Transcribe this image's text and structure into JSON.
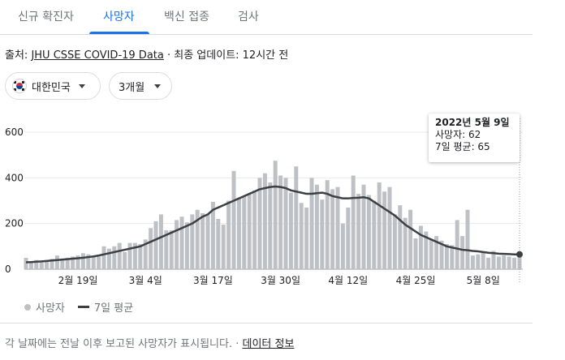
{
  "tabs": [
    {
      "label": "신규 확진자",
      "active": false
    },
    {
      "label": "사망자",
      "active": true
    },
    {
      "label": "백신 접종",
      "active": false
    },
    {
      "label": "검사",
      "active": false
    }
  ],
  "source": {
    "prefix": "출처: ",
    "link": "JHU CSSE COVID-19 Data",
    "update": " · 최종 업데이트: 12시간 전"
  },
  "filters": {
    "region": "대한민국",
    "region_flag": "south-korea-flag-icon",
    "period": "3개월"
  },
  "tooltip": {
    "date": "2022년 5월 9일",
    "deaths_line": "사망자: 62",
    "avg_line": "7일 평균: 65"
  },
  "legend": {
    "bars": "사망자",
    "line": "7일 평균"
  },
  "footnote": {
    "text": "각 날짜에는 전날 이후 보고된 사망자가 표시됩니다.",
    "sep": " · ",
    "link": "데이터 정보"
  },
  "colors": {
    "accent": "#1a73e8",
    "bar": "#bdc1c6",
    "line": "#3c4043"
  },
  "chart_data": {
    "type": "bar",
    "title": "",
    "xlabel": "",
    "ylabel": "",
    "ylim": [
      0,
      600
    ],
    "yticks": [
      0,
      200,
      400,
      600
    ],
    "xticks": [
      "2월 19일",
      "3월 4일",
      "3월 17일",
      "3월 30일",
      "4월 12일",
      "4월 25일",
      "5월 8일"
    ],
    "x_start": "2022-02-09",
    "x_end": "2022-05-09",
    "series": [
      {
        "name": "사망자",
        "kind": "bar",
        "values": [
          50,
          35,
          40,
          30,
          40,
          45,
          60,
          45,
          50,
          55,
          60,
          70,
          65,
          55,
          55,
          100,
          90,
          100,
          115,
          75,
          115,
          115,
          110,
          130,
          180,
          210,
          240,
          170,
          170,
          215,
          230,
          205,
          240,
          260,
          245,
          240,
          295,
          220,
          195,
          300,
          430,
          310,
          320,
          330,
          345,
          400,
          420,
          380,
          475,
          410,
          400,
          335,
          450,
          290,
          270,
          400,
          370,
          305,
          390,
          350,
          360,
          200,
          270,
          410,
          330,
          370,
          325,
          300,
          380,
          340,
          360,
          240,
          280,
          225,
          260,
          135,
          190,
          165,
          130,
          145,
          125,
          110,
          105,
          215,
          145,
          260,
          60,
          65,
          75,
          50,
          80,
          55,
          60,
          55,
          50,
          62
        ]
      },
      {
        "name": "7일 평균",
        "kind": "line",
        "values": [
          30,
          31,
          33,
          34,
          36,
          38,
          40,
          42,
          44,
          46,
          48,
          50,
          53,
          56,
          60,
          65,
          70,
          75,
          80,
          85,
          90,
          95,
          100,
          110,
          120,
          130,
          140,
          150,
          160,
          170,
          180,
          190,
          200,
          215,
          230,
          240,
          260,
          270,
          280,
          290,
          300,
          310,
          320,
          330,
          340,
          350,
          355,
          360,
          362,
          360,
          355,
          345,
          340,
          335,
          330,
          330,
          333,
          335,
          330,
          320,
          315,
          310,
          310,
          312,
          313,
          315,
          310,
          295,
          280,
          265,
          250,
          235,
          215,
          195,
          180,
          165,
          150,
          140,
          130,
          120,
          110,
          100,
          95,
          90,
          85,
          83,
          80,
          78,
          75,
          72,
          70,
          68,
          67,
          66,
          65,
          65
        ]
      }
    ],
    "highlight": {
      "date": "2022-05-09",
      "deaths": 62,
      "avg": 65
    },
    "grid": true,
    "legend_position": "bottom-left"
  }
}
